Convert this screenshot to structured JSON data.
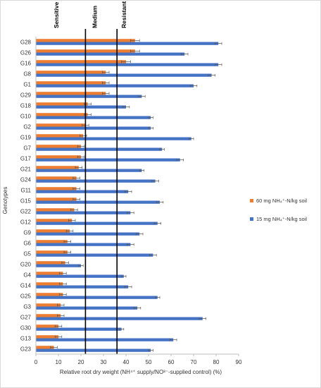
{
  "chart_data": {
    "type": "bar",
    "orientation": "horizontal",
    "categories": [
      "G28",
      "G26",
      "G16",
      "G8",
      "G1",
      "G29",
      "G18",
      "G10",
      "G2",
      "G19",
      "G7",
      "G17",
      "G21",
      "G24",
      "G11",
      "G15",
      "G22",
      "G12",
      "G9",
      "G6",
      "G5",
      "G20",
      "G4",
      "G14",
      "G25",
      "G3",
      "G27",
      "G30",
      "G13",
      "G23"
    ],
    "series": [
      {
        "name": "60 mg NH₄⁺-N/kg soil",
        "color": "#ED7D31",
        "values": [
          44,
          44,
          40,
          31,
          31,
          31,
          23,
          23,
          22,
          21,
          20,
          20,
          19,
          18,
          18,
          18,
          17,
          16,
          15,
          14,
          14,
          13,
          12,
          12,
          12,
          11,
          11,
          10,
          10,
          8
        ],
        "errors": [
          2,
          2,
          2,
          1.5,
          1.5,
          1.5,
          1.5,
          1.5,
          1.5,
          1.5,
          1.5,
          1.5,
          1.5,
          1.5,
          1.5,
          1.5,
          1.5,
          1.5,
          1.5,
          1.5,
          1.5,
          1.5,
          1.5,
          1.5,
          1.5,
          1.5,
          1.5,
          1.5,
          1.5,
          1.5
        ]
      },
      {
        "name": "15 mg NH₄⁺-N/kg soil",
        "color": "#4472C4",
        "values": [
          81,
          66,
          81,
          78,
          70,
          47,
          40,
          51,
          51,
          69,
          56,
          64,
          47,
          53,
          41,
          55,
          42,
          54,
          46,
          42,
          52,
          20,
          39,
          41,
          54,
          45,
          74,
          38,
          61,
          51
        ],
        "errors": [
          1.5,
          1.5,
          1.5,
          1.5,
          1.5,
          1.5,
          1.5,
          1,
          1,
          1,
          1,
          1.5,
          1,
          1.5,
          1.5,
          1.5,
          1.5,
          1.5,
          1.5,
          1.5,
          1.5,
          1,
          1,
          1.5,
          1,
          1.5,
          1.5,
          1,
          1.5,
          1
        ]
      }
    ],
    "xlabel": "Relative root dry weight (NH⁴⁺ supply/NO³⁻-supplied control) (%)",
    "ylabel": "Genotypes",
    "xlim": [
      0,
      90
    ],
    "xticks": [
      0,
      10,
      20,
      30,
      40,
      50,
      60,
      70,
      80,
      90
    ],
    "grid": false,
    "legend_position": "right",
    "threshold_lines": [
      {
        "value": 22,
        "label": "Sensitive"
      },
      {
        "value": 36,
        "label": "Medium"
      }
    ],
    "zone_labels": [
      "Sensitive",
      "Medium",
      "Resistant"
    ]
  }
}
